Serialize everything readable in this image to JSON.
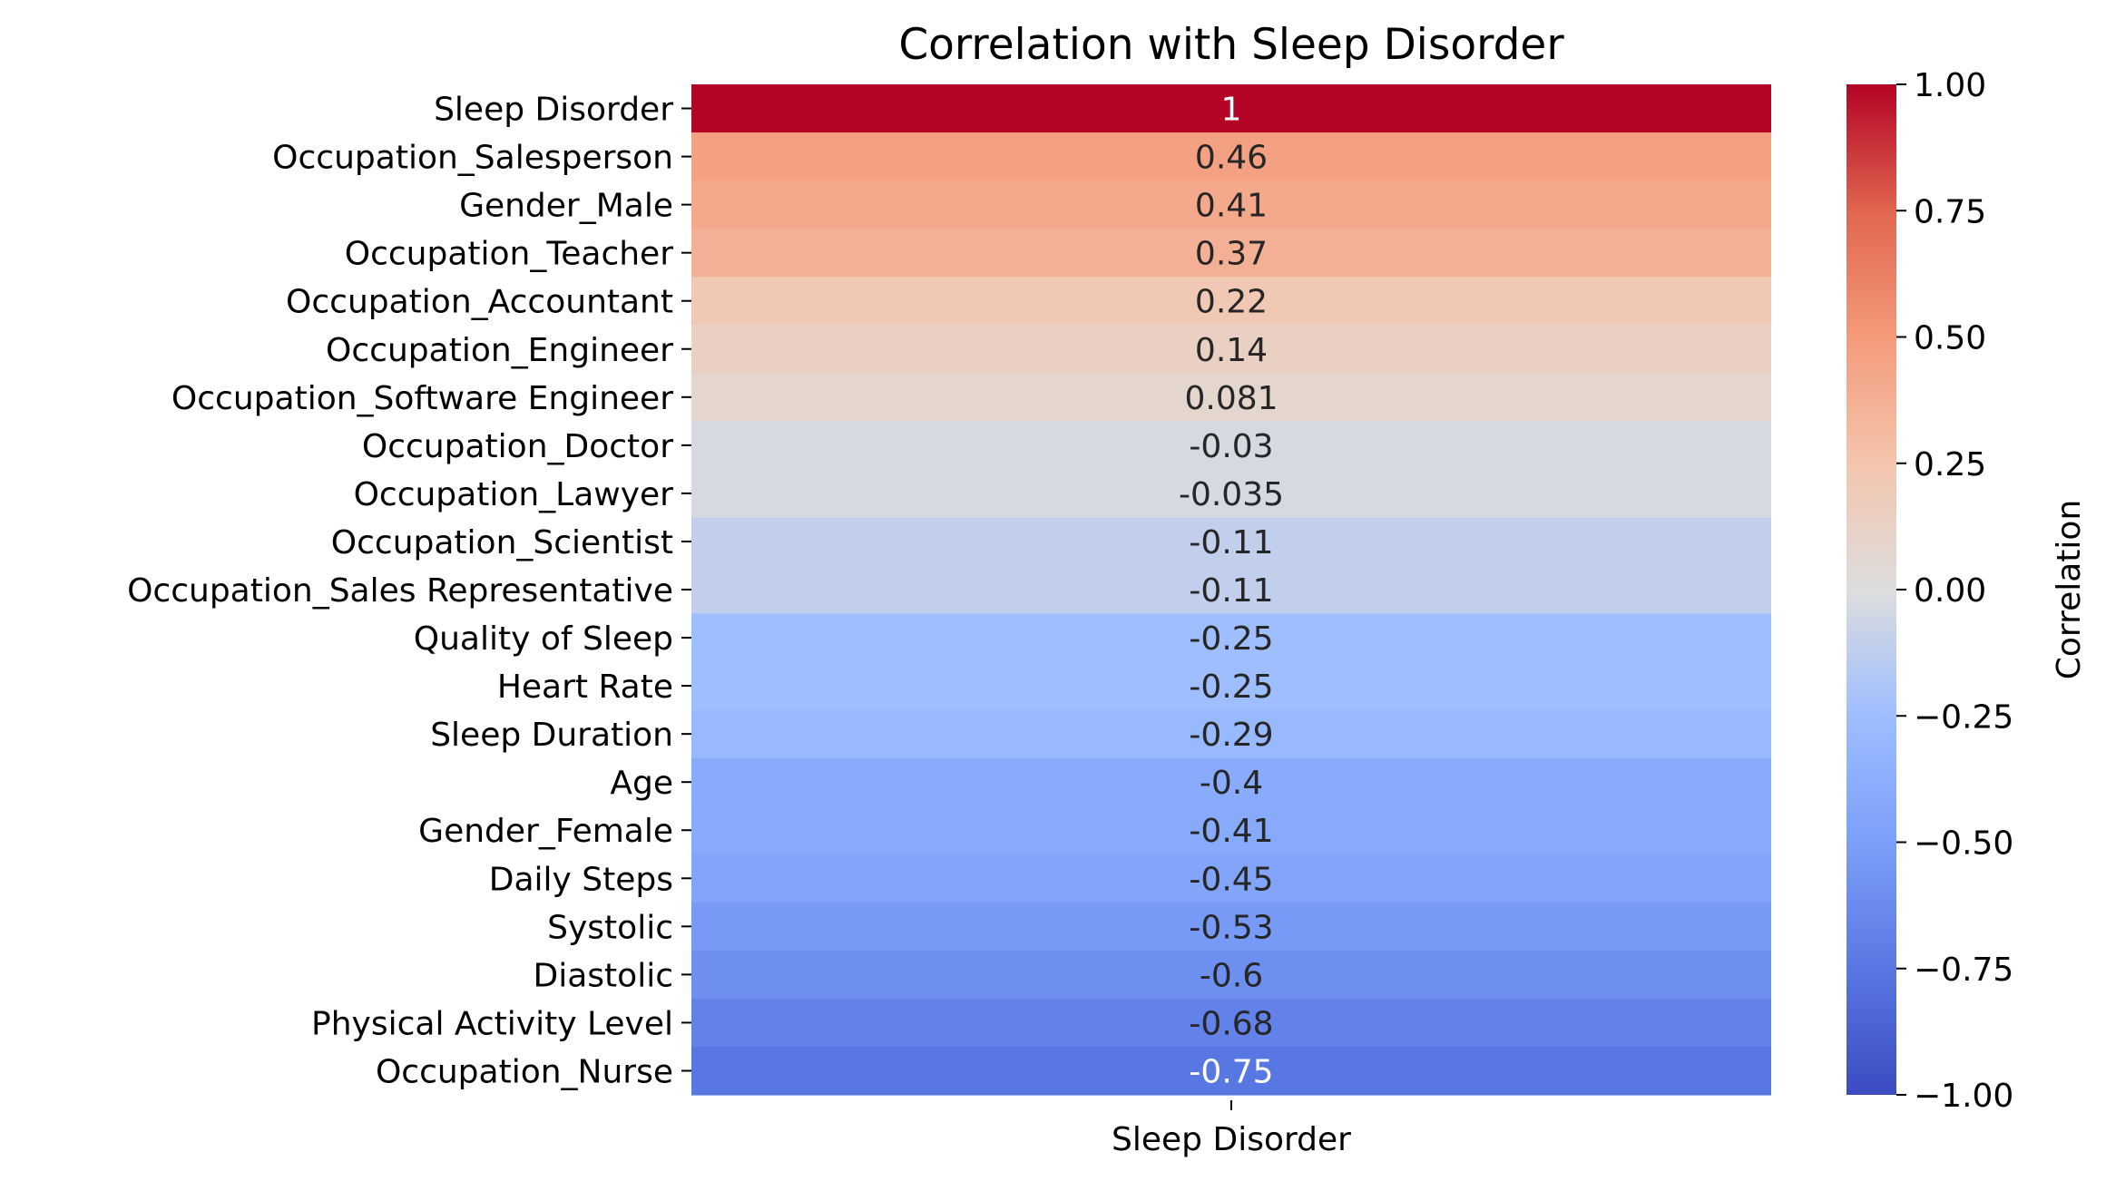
{
  "chart_data": {
    "type": "heatmap",
    "title": "Correlation with Sleep Disorder",
    "column_label": "Sleep Disorder",
    "rows": [
      {
        "label": "Sleep Disorder",
        "value": 1,
        "text": "1"
      },
      {
        "label": "Occupation_Salesperson",
        "value": 0.46,
        "text": "0.46"
      },
      {
        "label": "Gender_Male",
        "value": 0.41,
        "text": "0.41"
      },
      {
        "label": "Occupation_Teacher",
        "value": 0.37,
        "text": "0.37"
      },
      {
        "label": "Occupation_Accountant",
        "value": 0.22,
        "text": "0.22"
      },
      {
        "label": "Occupation_Engineer",
        "value": 0.14,
        "text": "0.14"
      },
      {
        "label": "Occupation_Software Engineer",
        "value": 0.081,
        "text": "0.081"
      },
      {
        "label": "Occupation_Doctor",
        "value": -0.03,
        "text": "-0.03"
      },
      {
        "label": "Occupation_Lawyer",
        "value": -0.035,
        "text": "-0.035"
      },
      {
        "label": "Occupation_Scientist",
        "value": -0.11,
        "text": "-0.11"
      },
      {
        "label": "Occupation_Sales Representative",
        "value": -0.11,
        "text": "-0.11"
      },
      {
        "label": "Quality of Sleep",
        "value": -0.25,
        "text": "-0.25"
      },
      {
        "label": "Heart Rate",
        "value": -0.25,
        "text": "-0.25"
      },
      {
        "label": "Sleep Duration",
        "value": -0.29,
        "text": "-0.29"
      },
      {
        "label": "Age",
        "value": -0.4,
        "text": "-0.4"
      },
      {
        "label": "Gender_Female",
        "value": -0.41,
        "text": "-0.41"
      },
      {
        "label": "Daily Steps",
        "value": -0.45,
        "text": "-0.45"
      },
      {
        "label": "Systolic",
        "value": -0.53,
        "text": "-0.53"
      },
      {
        "label": "Diastolic",
        "value": -0.6,
        "text": "-0.6"
      },
      {
        "label": "Physical Activity Level",
        "value": -0.68,
        "text": "-0.68"
      },
      {
        "label": "Occupation_Nurse",
        "value": -0.75,
        "text": "-0.75"
      }
    ],
    "colorbar": {
      "label": "Correlation",
      "colormap": "coolwarm",
      "range": [
        -1.0,
        1.0
      ],
      "ticks": [
        {
          "value": 1.0,
          "text": "1.00"
        },
        {
          "value": 0.75,
          "text": "0.75"
        },
        {
          "value": 0.5,
          "text": "0.50"
        },
        {
          "value": 0.25,
          "text": "0.25"
        },
        {
          "value": 0.0,
          "text": "0.00"
        },
        {
          "value": -0.25,
          "text": "−0.25"
        },
        {
          "value": -0.5,
          "text": "−0.50"
        },
        {
          "value": -0.75,
          "text": "−0.75"
        },
        {
          "value": -1.0,
          "text": "−1.00"
        }
      ]
    },
    "colors": {
      "low": "#3b4cc0",
      "mid": "#dddddd",
      "high": "#b40426",
      "text_dark": "#262626",
      "text_light": "#ffffff"
    }
  }
}
